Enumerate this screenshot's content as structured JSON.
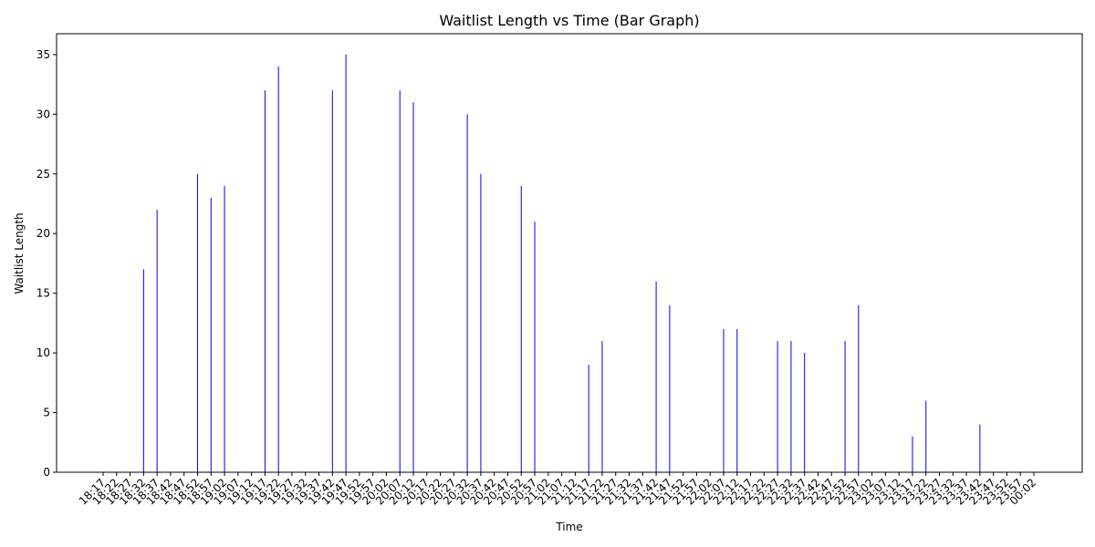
{
  "chart_data": {
    "type": "bar",
    "title": "Waitlist Length vs Time (Bar Graph)",
    "x_label": "Time",
    "y_label": "Waitlist Length",
    "categories": [
      "18:17",
      "18:22",
      "18:27",
      "18:32",
      "18:37",
      "18:42",
      "18:47",
      "18:52",
      "18:57",
      "19:02",
      "19:07",
      "19:12",
      "19:17",
      "19:22",
      "19:27",
      "19:32",
      "19:37",
      "19:42",
      "19:47",
      "19:52",
      "19:57",
      "20:02",
      "20:07",
      "20:12",
      "20:17",
      "20:22",
      "20:27",
      "20:32",
      "20:37",
      "20:42",
      "20:47",
      "20:52",
      "20:57",
      "21:02",
      "21:07",
      "21:12",
      "21:17",
      "21:22",
      "21:27",
      "21:32",
      "21:37",
      "21:42",
      "21:47",
      "21:52",
      "21:57",
      "22:02",
      "22:07",
      "22:12",
      "22:17",
      "22:22",
      "22:27",
      "22:32",
      "22:37",
      "22:42",
      "22:47",
      "22:52",
      "22:57",
      "23:02",
      "23:07",
      "23:12",
      "23:17",
      "23:22",
      "23:27",
      "23:32",
      "23:37",
      "23:42",
      "23:47",
      "23:52",
      "23:57",
      "00:02"
    ],
    "values": [
      0,
      0,
      0,
      17,
      22,
      0,
      0,
      25,
      23,
      24,
      0,
      0,
      32,
      34,
      0,
      0,
      0,
      32,
      35,
      0,
      0,
      0,
      32,
      31,
      0,
      0,
      0,
      30,
      25,
      0,
      0,
      24,
      21,
      0,
      0,
      0,
      9,
      11,
      0,
      0,
      0,
      16,
      14,
      0,
      0,
      0,
      12,
      12,
      0,
      0,
      11,
      11,
      10,
      0,
      0,
      11,
      14,
      0,
      0,
      0,
      3,
      6,
      0,
      0,
      0,
      4,
      0,
      0,
      0,
      0
    ],
    "color": "#0000ff",
    "ylim": [
      0,
      36.75
    ],
    "yticks": [
      0,
      5,
      10,
      15,
      20,
      25,
      30,
      35
    ],
    "grid": false
  }
}
